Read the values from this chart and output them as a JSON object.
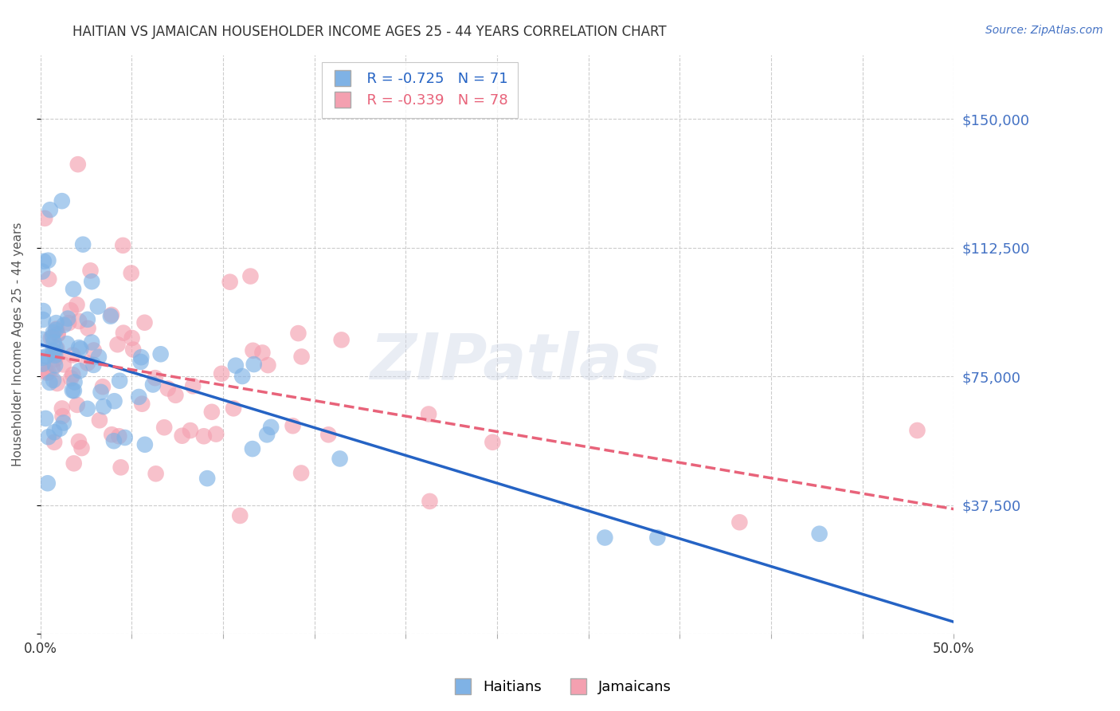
{
  "title": "HAITIAN VS JAMAICAN HOUSEHOLDER INCOME AGES 25 - 44 YEARS CORRELATION CHART",
  "source": "Source: ZipAtlas.com",
  "ylabel": "Householder Income Ages 25 - 44 years",
  "xlim": [
    0.0,
    0.5
  ],
  "ylim": [
    0,
    168750
  ],
  "yticks": [
    0,
    37500,
    75000,
    112500,
    150000
  ],
  "ytick_labels": [
    "",
    "$37,500",
    "$75,000",
    "$112,500",
    "$150,000"
  ],
  "xticks": [
    0.0,
    0.05,
    0.1,
    0.15,
    0.2,
    0.25,
    0.3,
    0.35,
    0.4,
    0.45,
    0.5
  ],
  "xtick_labels": [
    "0.0%",
    "",
    "",
    "",
    "",
    "",
    "",
    "",
    "",
    "",
    "50.0%"
  ],
  "haitian_color": "#7FB2E5",
  "jamaican_color": "#F4A0B0",
  "haitian_line_color": "#2563C4",
  "jamaican_line_color": "#E8637A",
  "R_haitian": -0.725,
  "N_haitian": 71,
  "R_jamaican": -0.339,
  "N_jamaican": 78,
  "watermark": "ZIPatlas",
  "title_color": "#333333",
  "axis_label_color": "#555555",
  "tick_color_x": "#333333",
  "tick_color_y": "#4472C4",
  "grid_color": "#cccccc"
}
